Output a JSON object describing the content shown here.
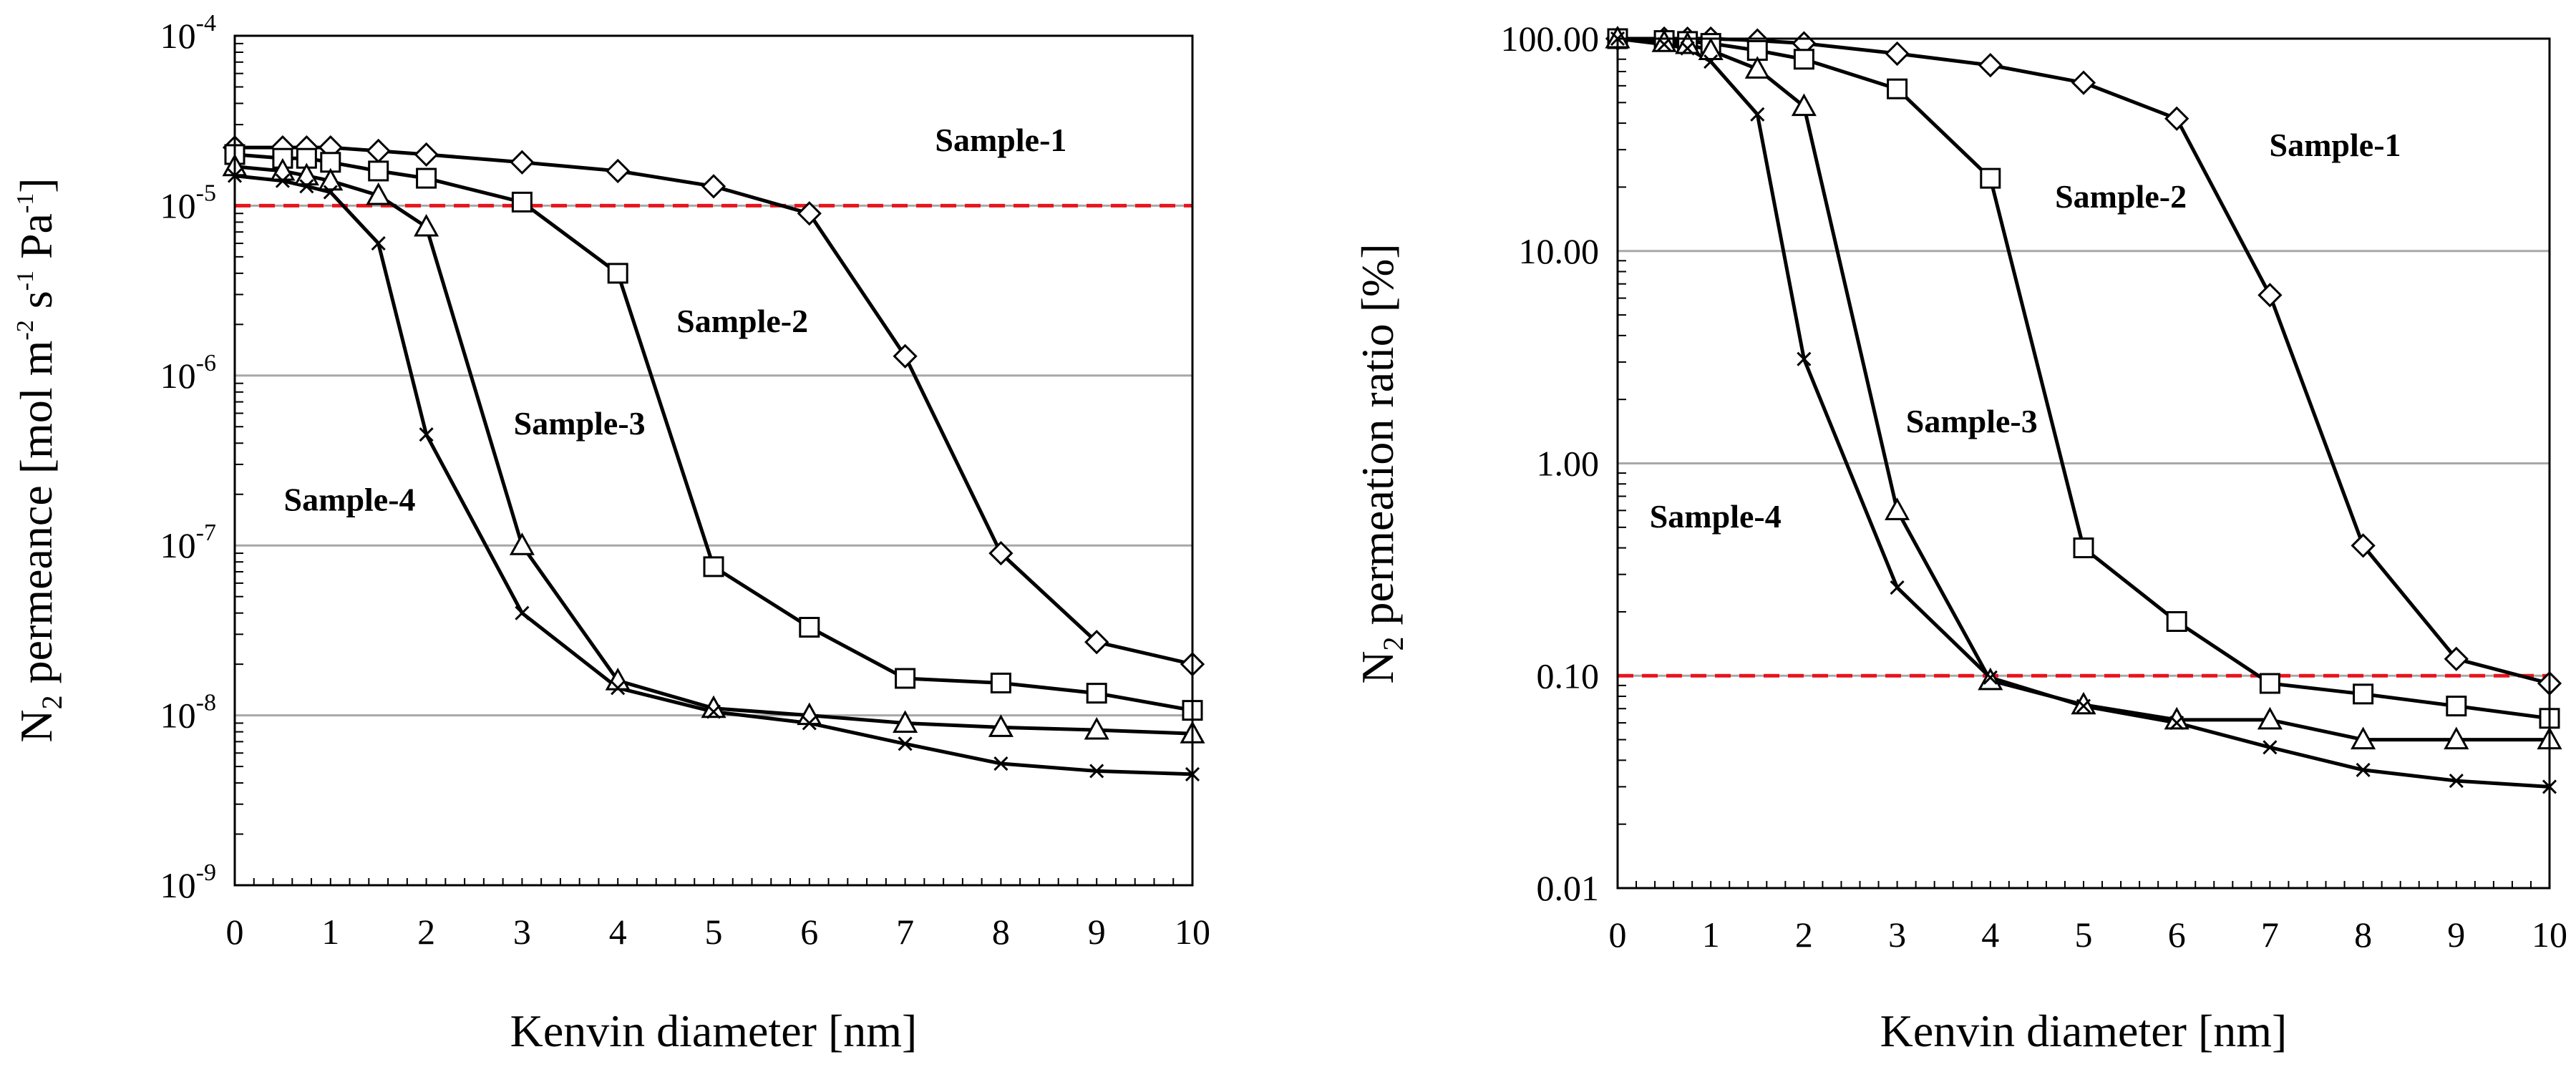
{
  "chart_data": [
    {
      "id": "left",
      "type": "line",
      "title": "",
      "xlabel": "Kenvin diameter [nm]",
      "ylabel_parts": {
        "n": "N",
        "n_sub": "2",
        "t1": " permeance [mol m",
        "s1": "-2",
        "t2": " s",
        "s2": "-1",
        "t3": " Pa",
        "s3": "-1",
        "t4": "]"
      },
      "yscale": "log",
      "xlim": [
        0,
        10
      ],
      "ylim": [
        1e-09,
        0.0001
      ],
      "x_ticks": [
        0,
        1,
        2,
        3,
        4,
        5,
        6,
        7,
        8,
        9,
        10
      ],
      "y_ticks": [
        {
          "value": 1e-09,
          "base": "10",
          "exp": "-9"
        },
        {
          "value": 1e-08,
          "base": "10",
          "exp": "-8"
        },
        {
          "value": 1e-07,
          "base": "10",
          "exp": "-7"
        },
        {
          "value": 1e-06,
          "base": "10",
          "exp": "-6"
        },
        {
          "value": 1e-05,
          "base": "10",
          "exp": "-5"
        },
        {
          "value": 0.0001,
          "base": "10",
          "exp": "-4"
        }
      ],
      "reference_line": {
        "value": 1e-05,
        "color": "#e8141c"
      },
      "series": [
        {
          "name": "Sample-1",
          "marker": "diamond",
          "x": [
            0,
            0.5,
            0.75,
            1,
            1.5,
            2,
            3,
            4,
            5,
            6,
            7,
            8,
            9,
            10
          ],
          "y": [
            2.2e-05,
            2.2e-05,
            2.2e-05,
            2.2e-05,
            2.1e-05,
            2e-05,
            1.8e-05,
            1.6e-05,
            1.3e-05,
            9e-06,
            1.3e-06,
            9e-08,
            2.7e-08,
            2e-08
          ]
        },
        {
          "name": "Sample-2",
          "marker": "square",
          "x": [
            0,
            0.5,
            0.75,
            1,
            1.5,
            2,
            3,
            4,
            5,
            6,
            7,
            8,
            9,
            10
          ],
          "y": [
            2e-05,
            1.9e-05,
            1.9e-05,
            1.8e-05,
            1.6e-05,
            1.45e-05,
            1.05e-05,
            4e-06,
            7.5e-08,
            3.3e-08,
            1.65e-08,
            1.55e-08,
            1.35e-08,
            1.07e-08
          ]
        },
        {
          "name": "Sample-3",
          "marker": "triangle",
          "x": [
            0,
            0.5,
            0.75,
            1,
            1.5,
            2,
            3,
            4,
            5,
            6,
            7,
            8,
            9,
            10
          ],
          "y": [
            1.7e-05,
            1.6e-05,
            1.5e-05,
            1.4e-05,
            1.15e-05,
            7.5e-06,
            1e-07,
            1.6e-08,
            1.1e-08,
            1e-08,
            9e-09,
            8.5e-09,
            8.2e-09,
            7.8e-09
          ]
        },
        {
          "name": "Sample-4",
          "marker": "x",
          "x": [
            0,
            0.5,
            0.75,
            1,
            1.5,
            2,
            3,
            4,
            5,
            6,
            7,
            8,
            9,
            10
          ],
          "y": [
            1.5e-05,
            1.4e-05,
            1.3e-05,
            1.2e-05,
            6e-06,
            4.5e-07,
            4e-08,
            1.45e-08,
            1.05e-08,
            9e-09,
            6.8e-09,
            5.2e-09,
            4.7e-09,
            4.5e-09
          ]
        }
      ],
      "labels": [
        {
          "text": "Sample-1",
          "x": 8.0,
          "y": 2.1e-05
        },
        {
          "text": "Sample-2",
          "x": 5.3,
          "y": 1.8e-06
        },
        {
          "text": "Sample-3",
          "x": 3.6,
          "y": 4.5e-07
        },
        {
          "text": "Sample-4",
          "x": 1.2,
          "y": 1.6e-07
        }
      ]
    },
    {
      "id": "right",
      "type": "line",
      "title": "",
      "xlabel": "Kenvin diameter [nm]",
      "ylabel_parts": {
        "n": "N",
        "n_sub": "2",
        "rest": " permeation ratio [%]"
      },
      "yscale": "log",
      "xlim": [
        0,
        10
      ],
      "ylim": [
        0.01,
        100
      ],
      "x_ticks": [
        0,
        1,
        2,
        3,
        4,
        5,
        6,
        7,
        8,
        9,
        10
      ],
      "y_ticks": [
        {
          "value": 0.01,
          "label": "0.01"
        },
        {
          "value": 0.1,
          "label": "0.10"
        },
        {
          "value": 1,
          "label": "1.00"
        },
        {
          "value": 10,
          "label": "10.00"
        },
        {
          "value": 100,
          "label": "100.00"
        }
      ],
      "reference_line": {
        "value": 0.1,
        "color": "#e8141c"
      },
      "series": [
        {
          "name": "Sample-1",
          "marker": "diamond",
          "x": [
            0,
            0.5,
            0.75,
            1,
            1.5,
            2,
            3,
            4,
            5,
            6,
            7,
            8,
            9,
            10
          ],
          "y": [
            100,
            100,
            100,
            100,
            98,
            95,
            85,
            75,
            62,
            42,
            6.2,
            0.41,
            0.12,
            0.092
          ]
        },
        {
          "name": "Sample-2",
          "marker": "square",
          "x": [
            0,
            0.5,
            0.75,
            1,
            1.5,
            2,
            3,
            4,
            5,
            6,
            7,
            8,
            9,
            10
          ],
          "y": [
            100,
            98,
            97,
            95,
            88,
            80,
            58,
            22,
            0.4,
            0.18,
            0.092,
            0.082,
            0.072,
            0.063
          ]
        },
        {
          "name": "Sample-3",
          "marker": "triangle",
          "x": [
            0,
            0.5,
            0.75,
            1,
            1.5,
            2,
            3,
            4,
            5,
            6,
            7,
            8,
            9,
            10
          ],
          "y": [
            100,
            96,
            94,
            88,
            72,
            48,
            0.6,
            0.095,
            0.073,
            0.062,
            0.062,
            0.05,
            0.05,
            0.05
          ]
        },
        {
          "name": "Sample-4",
          "marker": "x",
          "x": [
            0,
            0.5,
            0.75,
            1,
            1.5,
            2,
            3,
            4,
            5,
            6,
            7,
            8,
            9,
            10
          ],
          "y": [
            100,
            94,
            90,
            78,
            44,
            3.1,
            0.26,
            0.098,
            0.072,
            0.06,
            0.046,
            0.036,
            0.032,
            0.03
          ]
        }
      ],
      "labels": [
        {
          "text": "Sample-1",
          "x": 7.7,
          "y": 28
        },
        {
          "text": "Sample-2",
          "x": 5.4,
          "y": 16
        },
        {
          "text": "Sample-3",
          "x": 3.8,
          "y": 1.4
        },
        {
          "text": "Sample-4",
          "x": 1.05,
          "y": 0.5
        }
      ]
    }
  ]
}
